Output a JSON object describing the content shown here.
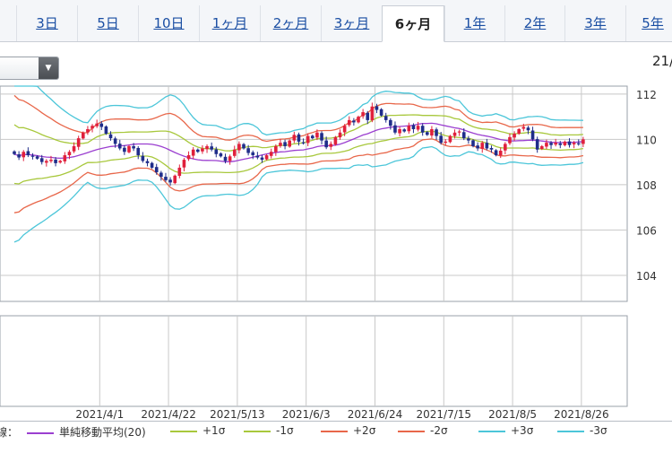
{
  "tabs": [
    {
      "label": "3日",
      "active": false
    },
    {
      "label": "5日",
      "active": false
    },
    {
      "label": "10日",
      "active": false
    },
    {
      "label": "1ヶ月",
      "active": false
    },
    {
      "label": "2ヶ月",
      "active": false
    },
    {
      "label": "3ヶ月",
      "active": false
    },
    {
      "label": "6ヶ月",
      "active": true
    },
    {
      "label": "1年",
      "active": false
    },
    {
      "label": "2年",
      "active": false
    },
    {
      "label": "3年",
      "active": false
    },
    {
      "label": "5年",
      "active": false
    }
  ],
  "header_date": "21/",
  "legend": {
    "prefix": "線：",
    "items": [
      {
        "label": "単純移動平均(20)",
        "color": "#9b3fd0"
      },
      {
        "label": "+1σ",
        "color": "#a8c83c"
      },
      {
        "label": "-1σ",
        "color": "#a8c83c"
      },
      {
        "label": "+2σ",
        "color": "#e8674a"
      },
      {
        "label": "-2σ",
        "color": "#e8674a"
      },
      {
        "label": "+3σ",
        "color": "#4cc6d9"
      },
      {
        "label": "-3σ",
        "color": "#4cc6d9"
      }
    ]
  },
  "colors": {
    "up": "#e0203c",
    "down": "#1f2d8a",
    "grid": "#c8c8c8"
  },
  "chart_data": {
    "type": "candlestick",
    "y_ticks": [
      104,
      106,
      108,
      110,
      112
    ],
    "ylim": [
      102.85,
      112.35
    ],
    "x_tick_labels": [
      "2021/4/1",
      "2021/4/22",
      "2021/5/13",
      "2021/6/3",
      "2021/6/24",
      "2021/7/15",
      "2021/8/5",
      "2021/8/26"
    ],
    "x_tick_index": [
      19,
      34,
      49,
      64,
      79,
      94,
      109,
      124
    ],
    "close": [
      109.35,
      109.2,
      109.45,
      109.3,
      109.25,
      109.15,
      109.0,
      109.05,
      109.1,
      108.95,
      109.05,
      109.3,
      109.45,
      109.7,
      110.05,
      110.3,
      110.45,
      110.6,
      110.7,
      110.55,
      110.25,
      110.05,
      109.8,
      109.6,
      109.45,
      109.7,
      109.6,
      109.3,
      109.05,
      108.95,
      108.75,
      108.55,
      108.35,
      108.2,
      108.1,
      108.4,
      108.75,
      109.1,
      109.3,
      109.55,
      109.45,
      109.6,
      109.7,
      109.55,
      109.35,
      109.25,
      109.05,
      109.25,
      109.55,
      109.8,
      109.6,
      109.4,
      109.3,
      109.2,
      109.1,
      109.3,
      109.45,
      109.7,
      109.85,
      109.7,
      109.95,
      110.2,
      109.9,
      109.85,
      110.15,
      110.05,
      110.3,
      109.95,
      109.65,
      109.8,
      110.1,
      110.3,
      110.6,
      110.85,
      110.75,
      111.0,
      111.2,
      110.85,
      111.45,
      111.3,
      111.05,
      110.85,
      110.6,
      110.3,
      110.45,
      110.35,
      110.6,
      110.45,
      110.6,
      110.3,
      110.2,
      110.45,
      110.15,
      109.85,
      109.9,
      110.15,
      110.3,
      110.35,
      110.05,
      109.95,
      109.7,
      109.6,
      109.85,
      109.6,
      109.55,
      109.3,
      109.5,
      109.8,
      110.1,
      110.25,
      110.45,
      110.55,
      110.4,
      110.0,
      109.55,
      109.7,
      109.85,
      109.75,
      109.85,
      109.75,
      109.9,
      109.75,
      109.85,
      109.8,
      110.0
    ]
  }
}
